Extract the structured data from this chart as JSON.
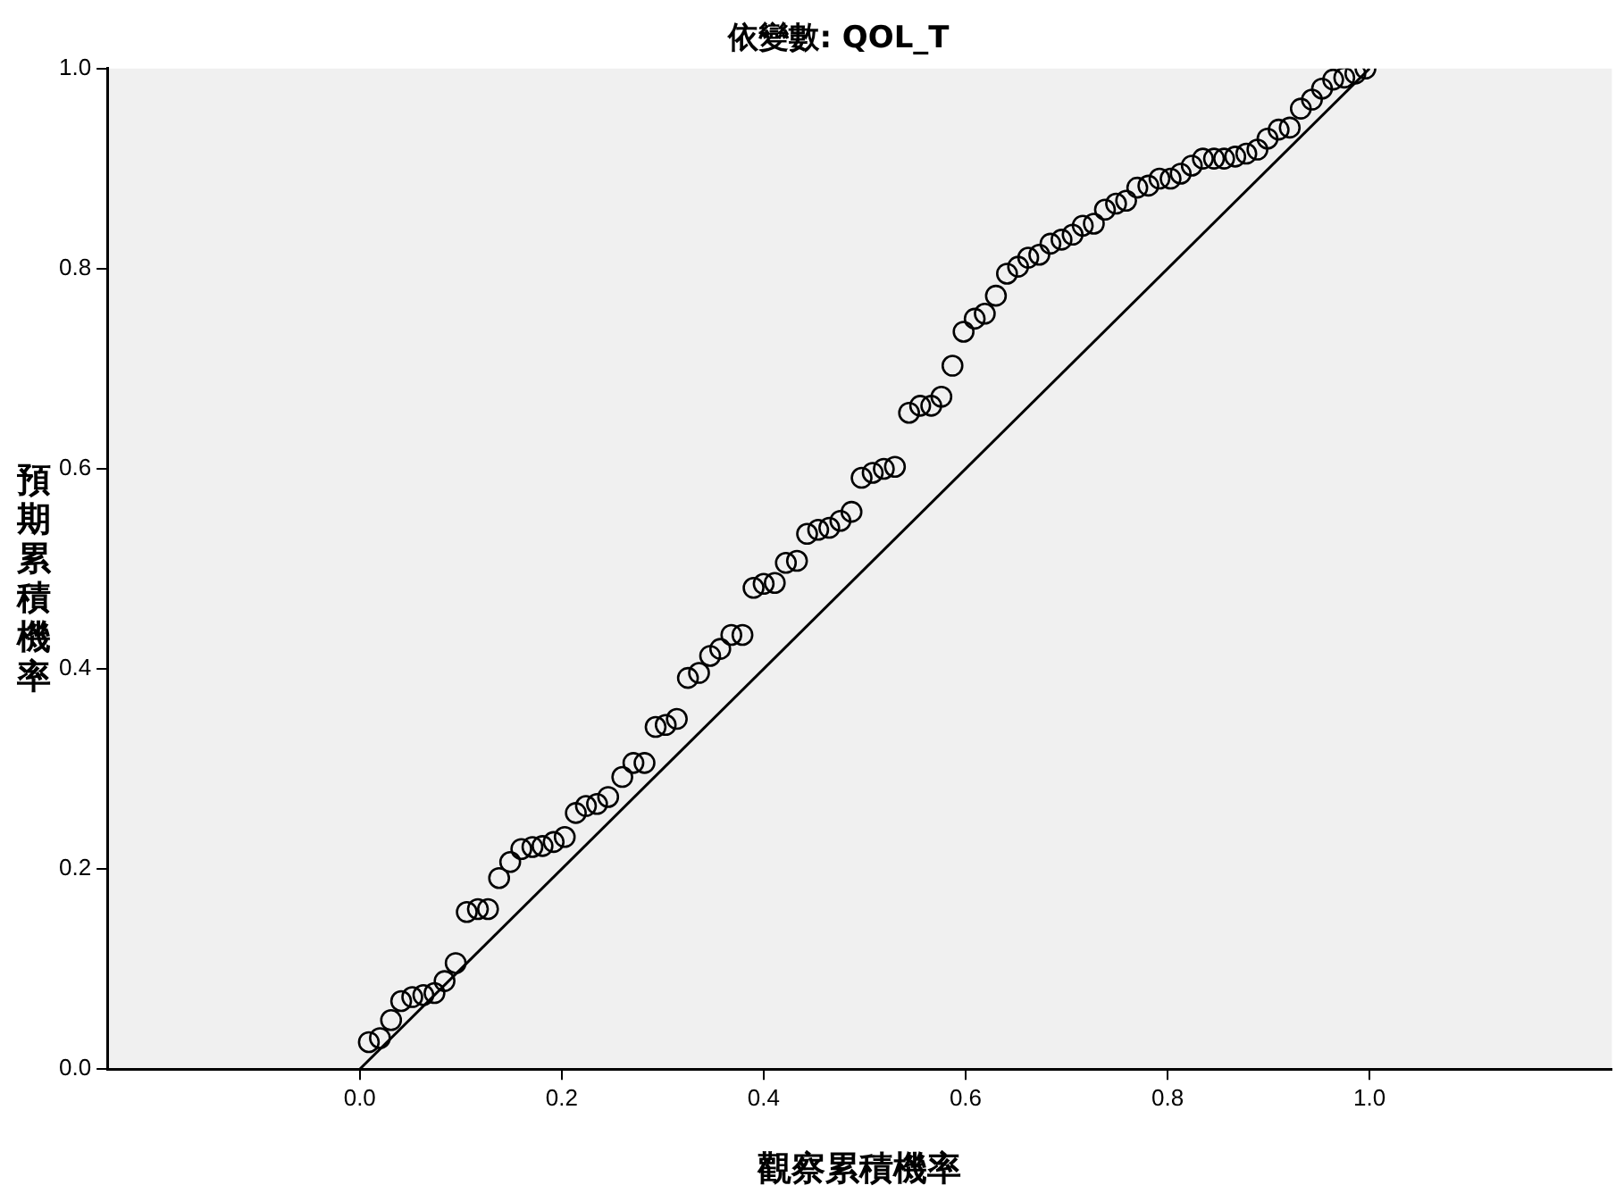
{
  "chart_data": {
    "type": "scatter",
    "title": "依變數: QOL_T",
    "xlabel": "觀察累積機率",
    "ylabel": "預期累積機率",
    "xlim": [
      -0.25,
      1.24
    ],
    "ylim": [
      0,
      1
    ],
    "xticks": [
      {
        "value": 0,
        "label": "0.0"
      },
      {
        "value": 0.2,
        "label": "0.2"
      },
      {
        "value": 0.4,
        "label": "0.4"
      },
      {
        "value": 0.6,
        "label": "0.6"
      },
      {
        "value": 0.8,
        "label": "0.8"
      },
      {
        "value": 1,
        "label": "1.0"
      }
    ],
    "yticks": [
      {
        "value": 0,
        "label": "0.0"
      },
      {
        "value": 0.2,
        "label": "0.2"
      },
      {
        "value": 0.4,
        "label": "0.4"
      },
      {
        "value": 0.6,
        "label": "0.6"
      },
      {
        "value": 0.8,
        "label": "0.8"
      },
      {
        "value": 1,
        "label": "1.0"
      }
    ],
    "grid": false,
    "legend": false,
    "series": [
      {
        "marker": "circle",
        "color": "#000000",
        "x": [
          0.009,
          0.02,
          0.031,
          0.041,
          0.052,
          0.063,
          0.074,
          0.084,
          0.095,
          0.106,
          0.117,
          0.127,
          0.138,
          0.149,
          0.16,
          0.171,
          0.181,
          0.192,
          0.203,
          0.214,
          0.224,
          0.235,
          0.246,
          0.26,
          0.271,
          0.282,
          0.293,
          0.303,
          0.314,
          0.325,
          0.336,
          0.347,
          0.357,
          0.368,
          0.379,
          0.39,
          0.4,
          0.411,
          0.422,
          0.433,
          0.443,
          0.454,
          0.465,
          0.476,
          0.487,
          0.497,
          0.508,
          0.519,
          0.53,
          0.544,
          0.555,
          0.566,
          0.576,
          0.587,
          0.598,
          0.609,
          0.619,
          0.63,
          0.641,
          0.652,
          0.662,
          0.673,
          0.684,
          0.695,
          0.706,
          0.716,
          0.727,
          0.738,
          0.749,
          0.759,
          0.77,
          0.781,
          0.792,
          0.803,
          0.813,
          0.824,
          0.835,
          0.846,
          0.856,
          0.867,
          0.878,
          0.889,
          0.899,
          0.91,
          0.921,
          0.932,
          0.943,
          0.953,
          0.964,
          0.975,
          0.986,
          0.996
        ],
        "values": [
          0.027,
          0.031,
          0.049,
          0.068,
          0.072,
          0.074,
          0.076,
          0.088,
          0.106,
          0.157,
          0.16,
          0.16,
          0.191,
          0.207,
          0.22,
          0.222,
          0.223,
          0.227,
          0.232,
          0.256,
          0.263,
          0.265,
          0.272,
          0.292,
          0.306,
          0.306,
          0.342,
          0.344,
          0.35,
          0.391,
          0.396,
          0.413,
          0.42,
          0.434,
          0.434,
          0.481,
          0.485,
          0.486,
          0.506,
          0.508,
          0.535,
          0.539,
          0.541,
          0.548,
          0.557,
          0.591,
          0.596,
          0.6,
          0.602,
          0.656,
          0.663,
          0.663,
          0.672,
          0.703,
          0.737,
          0.75,
          0.755,
          0.773,
          0.795,
          0.802,
          0.811,
          0.814,
          0.825,
          0.829,
          0.834,
          0.843,
          0.845,
          0.859,
          0.865,
          0.868,
          0.881,
          0.883,
          0.89,
          0.89,
          0.895,
          0.903,
          0.91,
          0.91,
          0.91,
          0.912,
          0.915,
          0.919,
          0.93,
          0.939,
          0.941,
          0.96,
          0.969,
          0.98,
          0.989,
          0.991,
          0.995,
          1.0
        ]
      },
      {
        "type": "line",
        "marker": "none",
        "color": "#000000",
        "x": [
          0,
          1
        ],
        "values": [
          0,
          1
        ]
      }
    ]
  }
}
